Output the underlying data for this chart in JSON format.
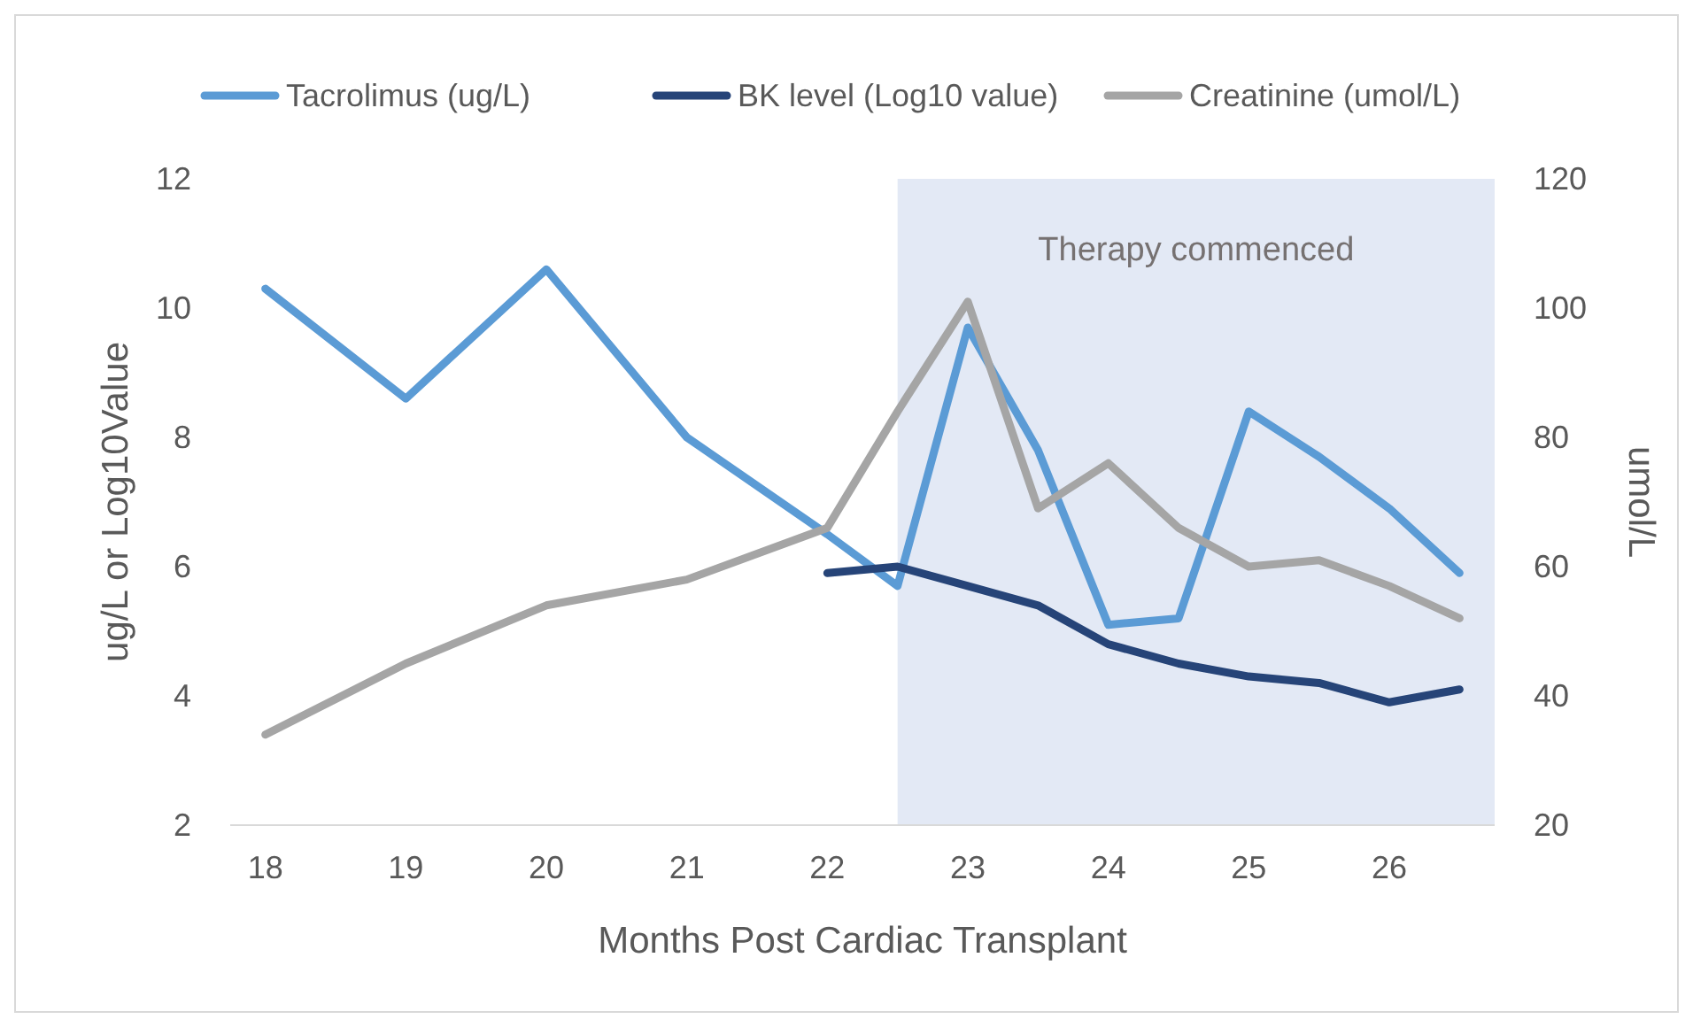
{
  "chart_data": {
    "type": "line",
    "xlabel": "Months Post Cardiac Transplant",
    "ylabel": "ug/L or Log10Value",
    "y2label": "umol/L",
    "xlim": [
      17.75,
      26.75
    ],
    "xticks": [
      18,
      19,
      20,
      21,
      22,
      23,
      24,
      25,
      26
    ],
    "ylim": [
      2,
      12
    ],
    "yticks": [
      2,
      4,
      6,
      8,
      10,
      12
    ],
    "y2lim": [
      20,
      120
    ],
    "y2ticks": [
      20,
      40,
      60,
      80,
      100,
      120
    ],
    "legend": "top",
    "grid": false,
    "marker": "none",
    "line_style": "solid",
    "bands": [
      {
        "axis": "x",
        "from": 22.5,
        "to": 26.75,
        "label": "Therapy commenced",
        "color": "#e3e9f5"
      }
    ],
    "series": [
      {
        "name": "Tacrolimus (ug/L)",
        "color": "#5b9bd5",
        "x": [
          18,
          19,
          20,
          21,
          22,
          22.5,
          23,
          23.5,
          24,
          24.5,
          25,
          25.5,
          26,
          26.5
        ],
        "values": [
          10.3,
          8.6,
          10.6,
          8.0,
          6.5,
          5.7,
          9.7,
          7.8,
          5.1,
          5.2,
          8.4,
          7.7,
          6.9,
          5.9
        ]
      },
      {
        "name": "BK level (Log10 value)",
        "color": "#264478",
        "x": [
          22,
          22.5,
          23,
          23.5,
          24,
          24.5,
          25,
          25.5,
          26,
          26.5
        ],
        "values": [
          5.9,
          6.0,
          5.7,
          5.4,
          4.8,
          4.5,
          4.3,
          4.2,
          3.9,
          4.1
        ]
      },
      {
        "name": "Creatinine (umol/L)",
        "color": "#a5a5a5",
        "axis": "y2",
        "x": [
          18,
          19,
          20,
          21,
          22,
          22.5,
          23,
          23.5,
          24,
          24.5,
          25,
          25.5,
          26,
          26.5
        ],
        "values": [
          34,
          45,
          54,
          58,
          66,
          84,
          101,
          69,
          76,
          66,
          60,
          61,
          57,
          52
        ]
      }
    ]
  }
}
